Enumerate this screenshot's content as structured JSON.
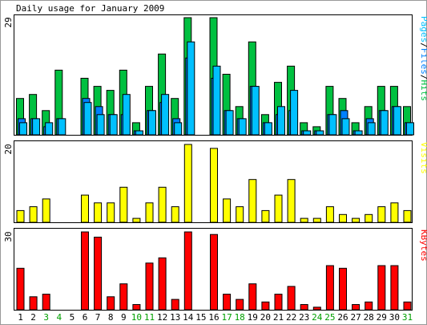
{
  "title": "Daily usage for January 2009",
  "colors": {
    "pages": "#00c0ff",
    "files": "#0080ff",
    "hits": "#00c040",
    "visits": "#ffff00",
    "kbytes": "#ff0000",
    "weekday_label": "#000000",
    "weekend_label": "#00a000"
  },
  "chart_data": [
    {
      "type": "bar",
      "panel": "hits-files-pages",
      "ymax_label": "29",
      "legend": [
        {
          "text": "Pages",
          "color": "#00c0ff"
        },
        {
          "text": "/",
          "color": "#000000"
        },
        {
          "text": "Files",
          "color": "#0080ff"
        },
        {
          "text": "/",
          "color": "#000000"
        },
        {
          "text": "Hits",
          "color": "#00c040"
        }
      ],
      "ylim": [
        0,
        29
      ],
      "categories": [
        "1",
        "2",
        "3",
        "4",
        "5",
        "6",
        "7",
        "8",
        "9",
        "10",
        "11",
        "12",
        "13",
        "14",
        "15",
        "16",
        "17",
        "18",
        "19",
        "20",
        "21",
        "22",
        "23",
        "24",
        "25",
        "26",
        "27",
        "28",
        "29",
        "30",
        "31"
      ],
      "series": [
        {
          "name": "Hits",
          "color": "#00c040",
          "values": [
            9,
            10,
            6,
            16,
            0,
            14,
            12,
            11,
            16,
            3,
            12,
            20,
            9,
            29,
            0,
            29,
            15,
            7,
            23,
            5,
            13,
            17,
            3,
            2,
            12,
            9,
            3,
            7,
            12,
            12,
            7
          ]
        },
        {
          "name": "Files",
          "color": "#0080ff",
          "values": [
            4,
            4,
            2,
            4,
            0,
            9,
            7,
            5,
            5,
            1,
            6,
            8,
            4,
            19,
            0,
            14,
            6,
            4,
            12,
            3,
            5,
            6,
            1,
            1,
            5,
            6,
            1,
            4,
            6,
            7,
            3
          ]
        },
        {
          "name": "Pages",
          "color": "#00c0ff",
          "values": [
            3,
            4,
            3,
            4,
            0,
            8,
            5,
            5,
            10,
            1,
            6,
            10,
            3,
            23,
            0,
            17,
            6,
            4,
            12,
            3,
            7,
            11,
            1,
            1,
            5,
            4,
            1,
            3,
            6,
            7,
            3
          ]
        }
      ]
    },
    {
      "type": "bar",
      "panel": "visits",
      "ymax_label": "20",
      "legend": [
        {
          "text": "Visits",
          "color": "#ffff00"
        }
      ],
      "ylim": [
        0,
        20
      ],
      "categories": [
        "1",
        "2",
        "3",
        "4",
        "5",
        "6",
        "7",
        "8",
        "9",
        "10",
        "11",
        "12",
        "13",
        "14",
        "15",
        "16",
        "17",
        "18",
        "19",
        "20",
        "21",
        "22",
        "23",
        "24",
        "25",
        "26",
        "27",
        "28",
        "29",
        "30",
        "31"
      ],
      "series": [
        {
          "name": "Visits",
          "color": "#ffff00",
          "values": [
            3,
            4,
            6,
            0,
            0,
            7,
            5,
            5,
            9,
            1,
            5,
            9,
            4,
            20,
            0,
            19,
            6,
            4,
            11,
            3,
            7,
            11,
            1,
            1,
            4,
            2,
            1,
            2,
            4,
            5,
            3
          ]
        }
      ]
    },
    {
      "type": "bar",
      "panel": "kbytes",
      "ymax_label": "30",
      "legend": [
        {
          "text": "KBytes",
          "color": "#ff0000"
        }
      ],
      "ylim": [
        0,
        30
      ],
      "categories": [
        "1",
        "2",
        "3",
        "4",
        "5",
        "6",
        "7",
        "8",
        "9",
        "10",
        "11",
        "12",
        "13",
        "14",
        "15",
        "16",
        "17",
        "18",
        "19",
        "20",
        "21",
        "22",
        "23",
        "24",
        "25",
        "26",
        "27",
        "28",
        "29",
        "30",
        "31"
      ],
      "series": [
        {
          "name": "KBytes",
          "color": "#ff0000",
          "values": [
            16,
            5,
            6,
            0,
            0,
            30,
            28,
            5,
            10,
            2,
            18,
            20,
            4,
            30,
            0,
            29,
            6,
            4,
            10,
            3,
            6,
            9,
            2,
            1,
            17,
            16,
            2,
            3,
            17,
            17,
            3
          ]
        }
      ]
    }
  ],
  "xaxis": {
    "labels": [
      "1",
      "2",
      "3",
      "4",
      "5",
      "6",
      "7",
      "8",
      "9",
      "10",
      "11",
      "12",
      "13",
      "14",
      "15",
      "16",
      "17",
      "18",
      "19",
      "20",
      "21",
      "22",
      "23",
      "24",
      "25",
      "26",
      "27",
      "28",
      "29",
      "30",
      "31"
    ],
    "weekend_days": [
      3,
      4,
      10,
      11,
      17,
      18,
      24,
      25,
      31
    ]
  }
}
